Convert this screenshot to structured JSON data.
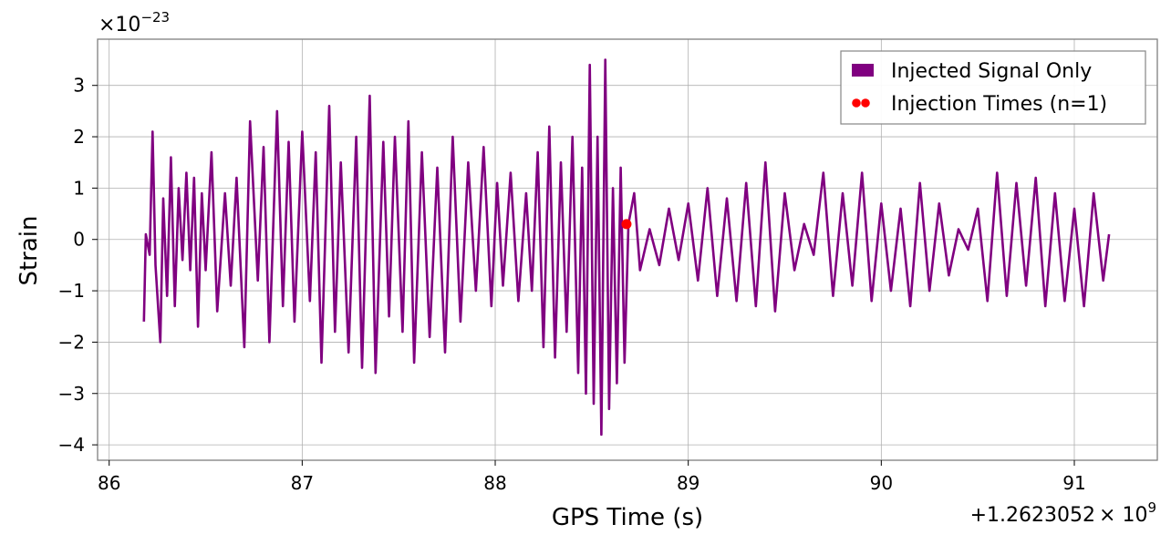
{
  "chart_data": {
    "type": "line",
    "title": "",
    "xlabel": "GPS Time (s)",
    "ylabel": "Strain",
    "x_offset_label": "+1.2623052",
    "x_offset_exp_base": "× 10",
    "x_offset_exp": "9",
    "y_scale_base": "×10",
    "y_scale_exp": "−23",
    "xlim": [
      85.94,
      91.43
    ],
    "ylim": [
      -4.3,
      3.9
    ],
    "x_ticks": [
      86,
      87,
      88,
      89,
      90,
      91
    ],
    "x_tick_labels": [
      "86",
      "87",
      "88",
      "89",
      "90",
      "91"
    ],
    "y_ticks": [
      3,
      2,
      1,
      0,
      -1,
      -2,
      -3,
      -4
    ],
    "y_tick_labels": [
      "3",
      "2",
      "1",
      "0",
      "−1",
      "−2",
      "−3",
      "−4"
    ],
    "grid": true,
    "legend_position": "top-right",
    "series": [
      {
        "name": "Injected Signal Only",
        "color": "#800080",
        "x": [
          86.18,
          86.19,
          86.21,
          86.225,
          86.24,
          86.265,
          86.28,
          86.3,
          86.32,
          86.34,
          86.36,
          86.38,
          86.4,
          86.42,
          86.44,
          86.46,
          86.48,
          86.5,
          86.53,
          86.56,
          86.6,
          86.63,
          86.66,
          86.7,
          86.73,
          86.77,
          86.8,
          86.83,
          86.87,
          86.9,
          86.93,
          86.96,
          87.0,
          87.04,
          87.07,
          87.1,
          87.14,
          87.17,
          87.2,
          87.24,
          87.28,
          87.31,
          87.35,
          87.38,
          87.42,
          87.45,
          87.48,
          87.52,
          87.55,
          87.58,
          87.62,
          87.66,
          87.7,
          87.74,
          87.78,
          87.82,
          87.86,
          87.9,
          87.94,
          87.98,
          88.01,
          88.04,
          88.08,
          88.12,
          88.16,
          88.19,
          88.22,
          88.25,
          88.28,
          88.31,
          88.34,
          88.37,
          88.4,
          88.43,
          88.45,
          88.47,
          88.49,
          88.51,
          88.53,
          88.55,
          88.57,
          88.59,
          88.61,
          88.63,
          88.65,
          88.67,
          88.69,
          88.72,
          88.75,
          88.8,
          88.85,
          88.9,
          88.95,
          89.0,
          89.05,
          89.1,
          89.15,
          89.2,
          89.25,
          89.3,
          89.35,
          89.4,
          89.45,
          89.5,
          89.55,
          89.6,
          89.65,
          89.7,
          89.75,
          89.8,
          89.85,
          89.9,
          89.95,
          90.0,
          90.05,
          90.1,
          90.15,
          90.2,
          90.25,
          90.3,
          90.35,
          90.4,
          90.45,
          90.5,
          90.55,
          90.6,
          90.65,
          90.7,
          90.75,
          90.8,
          90.85,
          90.9,
          90.95,
          91.0,
          91.05,
          91.1,
          91.15,
          91.18
        ],
        "y": [
          -1.6,
          0.1,
          -0.3,
          2.1,
          -0.5,
          -2.0,
          0.8,
          -1.1,
          1.6,
          -1.3,
          1.0,
          -0.4,
          1.3,
          -0.6,
          1.2,
          -1.7,
          0.9,
          -0.6,
          1.7,
          -1.4,
          0.9,
          -0.9,
          1.2,
          -2.1,
          2.3,
          -0.8,
          1.8,
          -2.0,
          2.5,
          -1.3,
          1.9,
          -1.6,
          2.1,
          -1.2,
          1.7,
          -2.4,
          2.6,
          -1.8,
          1.5,
          -2.2,
          2.0,
          -2.5,
          2.8,
          -2.6,
          1.9,
          -1.5,
          2.0,
          -1.8,
          2.3,
          -2.4,
          1.7,
          -1.9,
          1.4,
          -2.2,
          2.0,
          -1.6,
          1.5,
          -1.0,
          1.8,
          -1.3,
          1.1,
          -0.9,
          1.3,
          -1.2,
          0.9,
          -1.0,
          1.7,
          -2.1,
          2.2,
          -2.3,
          1.5,
          -1.8,
          2.0,
          -2.6,
          1.4,
          -3.0,
          3.4,
          -3.2,
          2.0,
          -3.8,
          3.5,
          -3.3,
          1.0,
          -2.8,
          1.4,
          -2.4,
          0.3,
          0.9,
          -0.6,
          0.2,
          -0.5,
          0.6,
          -0.4,
          0.7,
          -0.8,
          1.0,
          -1.1,
          0.8,
          -1.2,
          1.1,
          -1.3,
          1.5,
          -1.4,
          0.9,
          -0.6,
          0.3,
          -0.3,
          1.3,
          -1.1,
          0.9,
          -0.9,
          1.3,
          -1.2,
          0.7,
          -1.0,
          0.6,
          -1.3,
          1.1,
          -1.0,
          0.7,
          -0.7,
          0.2,
          -0.2,
          0.6,
          -1.2,
          1.3,
          -1.1,
          1.1,
          -0.9,
          1.2,
          -1.3,
          0.9,
          -1.2,
          0.6,
          -1.3,
          0.9,
          -0.8,
          0.1
        ]
      },
      {
        "name": "Injection Times (n=1)",
        "type": "scatter",
        "color": "#ff0000",
        "x": [
          88.68
        ],
        "y": [
          0.3
        ]
      }
    ]
  }
}
